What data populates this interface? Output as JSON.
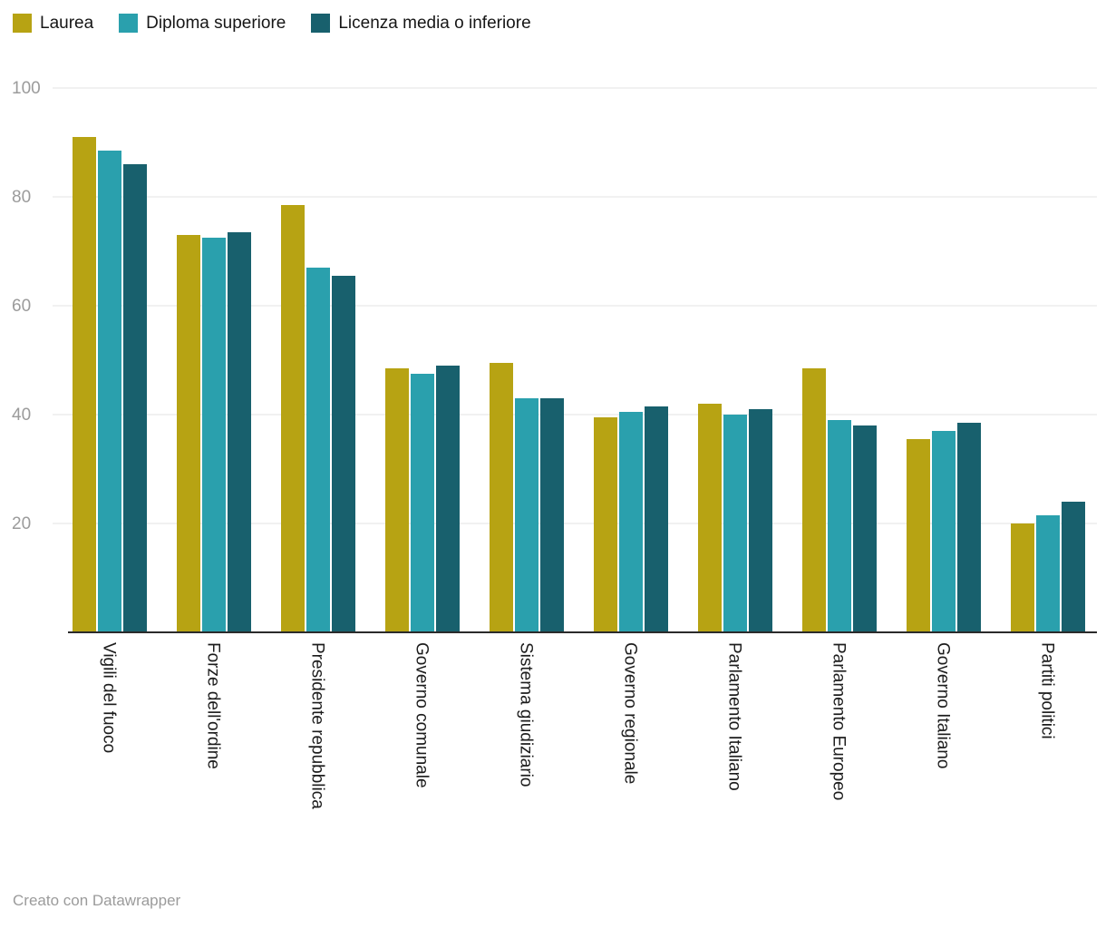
{
  "footer": {
    "text": "Creato con Datawrapper"
  },
  "chart_data": {
    "type": "bar",
    "title": "",
    "categories": [
      "Vigili del fuoco",
      "Forze dell'ordine",
      "Presidente repubblica",
      "Governo comunale",
      "Sistema giudiziario",
      "Governo regionale",
      "Parlamento Italiano",
      "Parlamento Europeo",
      "Governo Italiano",
      "Partiti politici"
    ],
    "series": [
      {
        "name": "Laurea",
        "color": "#b7a313",
        "values": [
          91,
          73,
          78.5,
          48.5,
          49.5,
          39.5,
          42,
          48.5,
          35.5,
          20
        ]
      },
      {
        "name": "Diploma superiore",
        "color": "#2aa0ad",
        "values": [
          88.5,
          72.5,
          67,
          47.5,
          43,
          40.5,
          40,
          39,
          37,
          21.5
        ]
      },
      {
        "name": "Licenza media o inferiore",
        "color": "#18606d",
        "values": [
          86,
          73.5,
          65.5,
          49,
          43,
          41.5,
          41,
          38,
          38.5,
          24
        ]
      }
    ],
    "ylim": [
      0,
      100
    ],
    "yticks": [
      20,
      40,
      60,
      80,
      100
    ],
    "grid": true,
    "legend_position": "top",
    "axis_color": "#2b2b2b",
    "grid_color": "#e3e3e3",
    "tick_label_color": "#9b9b9b",
    "category_label_color": "#1c1c1c"
  }
}
